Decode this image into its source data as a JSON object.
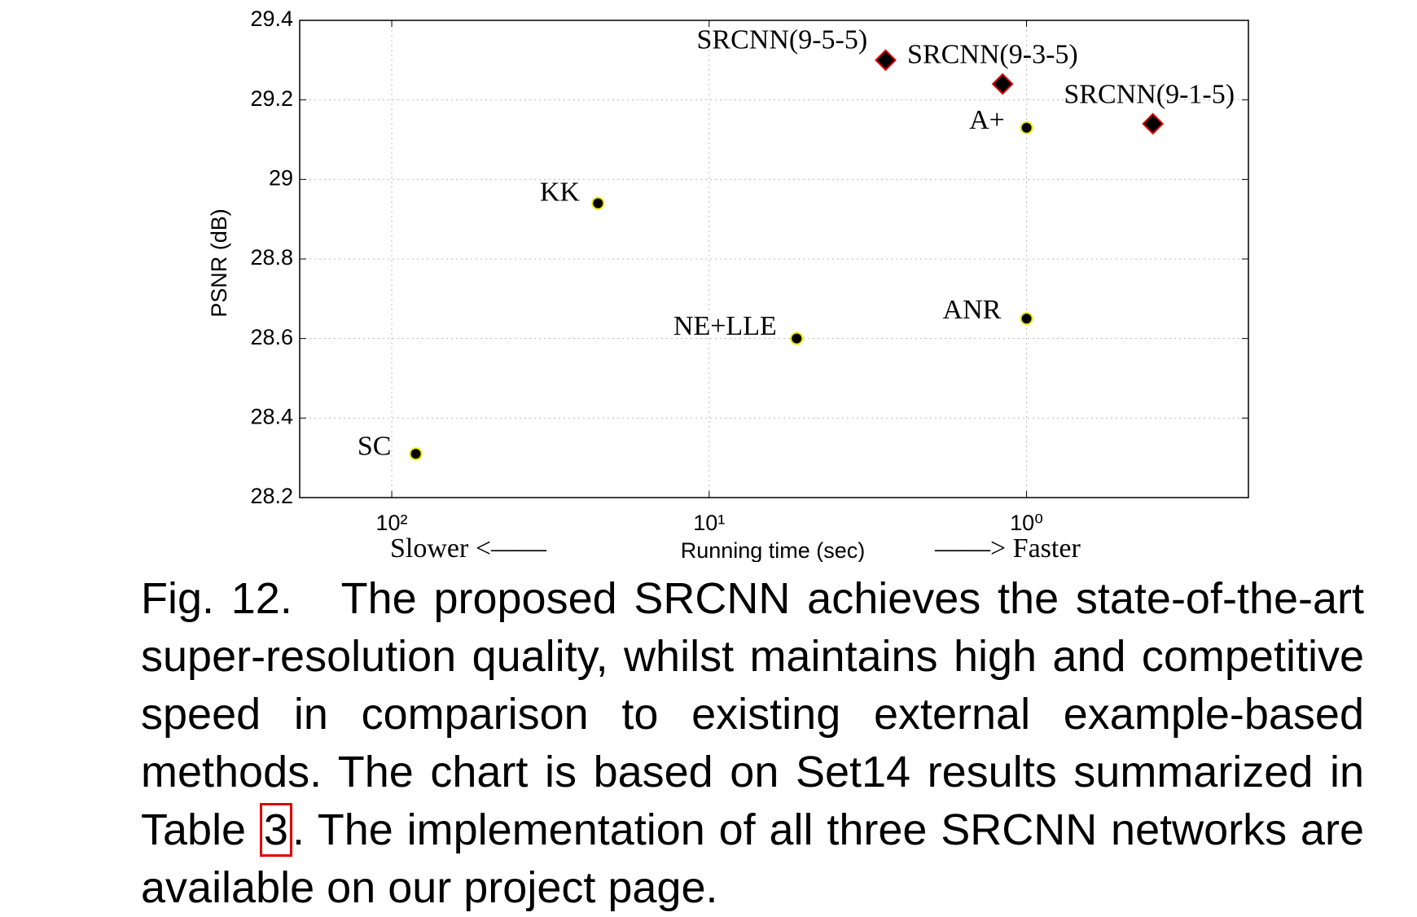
{
  "chart_data": {
    "type": "scatter",
    "xlabel": "Running time (sec)",
    "ylabel": "PSNR (dB)",
    "annotations": [
      "Slower <——",
      "——> Faster"
    ],
    "xscale": "log",
    "xlim": [
      195,
      0.2
    ],
    "ylim": [
      28.2,
      29.4
    ],
    "xticks": [
      {
        "value": 100,
        "label": "10²"
      },
      {
        "value": 10,
        "label": "10¹"
      },
      {
        "value": 1,
        "label": "10⁰"
      }
    ],
    "yticks": [
      28.2,
      28.4,
      28.6,
      28.8,
      29,
      29.2,
      29.4
    ],
    "grid": true,
    "series": [
      {
        "marker": "circle",
        "color": "#000000",
        "edgecolor": "#e8e800",
        "labels": [
          "SC",
          "KK",
          "NE+LLE",
          "ANR",
          "A+"
        ],
        "x": [
          84,
          22.4,
          5.3,
          1,
          1
        ],
        "y": [
          28.31,
          28.94,
          28.6,
          28.65,
          29.13
        ]
      },
      {
        "marker": "diamond",
        "color": "#000000",
        "edgecolor": "#e00000",
        "labels": [
          "SRCNN(9-5-5)",
          "SRCNN(9-3-5)",
          "SRCNN(9-1-5)"
        ],
        "x": [
          2.78,
          1.19,
          0.4
        ],
        "y": [
          29.3,
          29.24,
          29.14
        ]
      }
    ]
  },
  "caption": {
    "label": "Fig. 12.",
    "before": "The proposed SRCNN achieves the state-of-the-art super-resolution quality, whilst maintains high and competitive speed in comparison to existing external example-based methods. The chart is based on Set14 results summarized in Table",
    "ref": "3",
    "after": ". The implementation of all three SRCNN networks are available on our project page."
  }
}
